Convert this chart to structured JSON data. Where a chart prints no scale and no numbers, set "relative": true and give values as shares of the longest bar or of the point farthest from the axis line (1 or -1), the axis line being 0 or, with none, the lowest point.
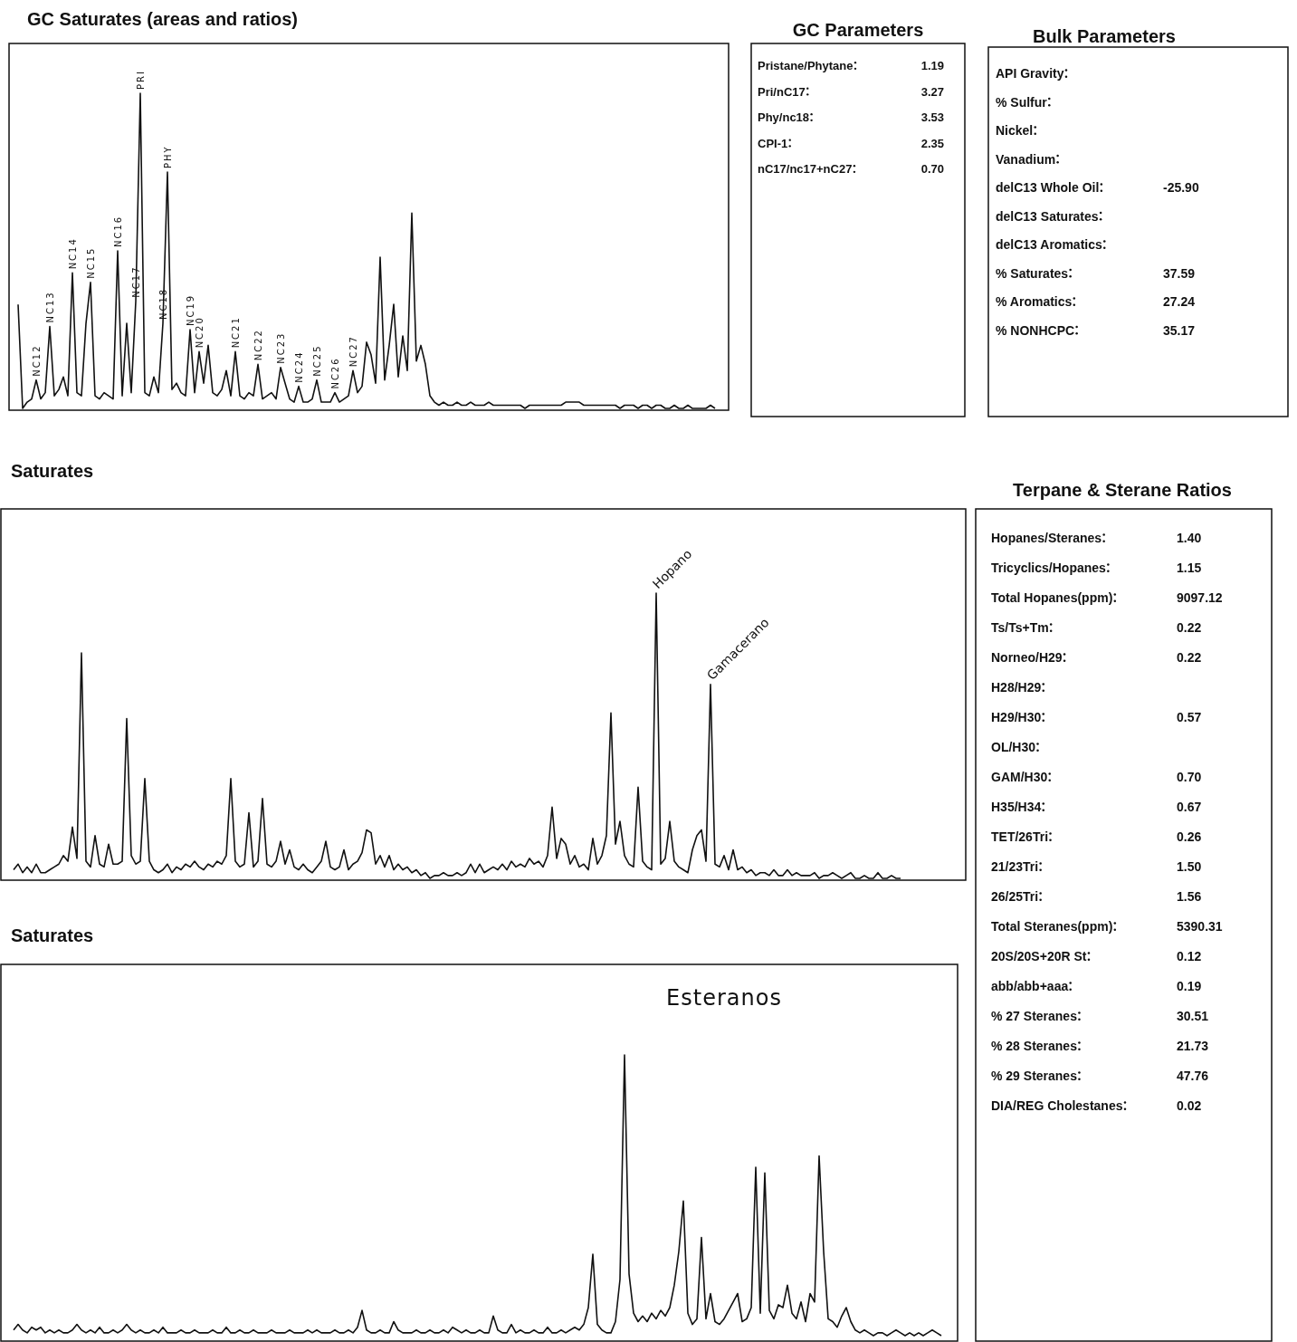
{
  "chart_data": [
    {
      "type": "line",
      "title": "GC Saturates (areas and ratios)",
      "relative": true,
      "color": "#111111",
      "categories": [
        null,
        null,
        null,
        null,
        null,
        null,
        null,
        null,
        null,
        null,
        null,
        null,
        null,
        null,
        null,
        null,
        null,
        null,
        null,
        null,
        null,
        null,
        null,
        null,
        null,
        null,
        null,
        null,
        null,
        null,
        null,
        null,
        null,
        null,
        null,
        null,
        null,
        null,
        null,
        null,
        null,
        null,
        null,
        null,
        null,
        null,
        null,
        null,
        null,
        null,
        null,
        null,
        null,
        null,
        null,
        null,
        null,
        null,
        null,
        null,
        null,
        null,
        null,
        null,
        null,
        null,
        null,
        null,
        null,
        null,
        null,
        null,
        null,
        null,
        null,
        null,
        null,
        null,
        null,
        null,
        null,
        null,
        null,
        null,
        null,
        null,
        null,
        null,
        null,
        null,
        null,
        null,
        null,
        null,
        null,
        null,
        null,
        null,
        null,
        null,
        null,
        null,
        null,
        null,
        null,
        null,
        null,
        null,
        null,
        null,
        null,
        null,
        null,
        null,
        null,
        null,
        null,
        null,
        null,
        null,
        null,
        null,
        null,
        null,
        null,
        null,
        null,
        null,
        null,
        null,
        null,
        null,
        null,
        null,
        null,
        null,
        null,
        null,
        null,
        null,
        null,
        null,
        null,
        null,
        null,
        null,
        null,
        null,
        null,
        null,
        null,
        null,
        null,
        null,
        null
      ],
      "values": [
        0.33,
        0.0,
        0.02,
        0.03,
        0.09,
        0.03,
        0.05,
        0.26,
        0.04,
        0.06,
        0.1,
        0.04,
        0.43,
        0.05,
        0.04,
        0.27,
        0.4,
        0.04,
        0.03,
        0.05,
        0.04,
        0.03,
        0.5,
        0.04,
        0.27,
        0.05,
        0.34,
        1.0,
        0.05,
        0.04,
        0.1,
        0.05,
        0.27,
        0.75,
        0.06,
        0.08,
        0.05,
        0.04,
        0.25,
        0.05,
        0.18,
        0.08,
        0.2,
        0.05,
        0.04,
        0.06,
        0.12,
        0.04,
        0.18,
        0.04,
        0.03,
        0.05,
        0.04,
        0.14,
        0.03,
        0.04,
        0.05,
        0.03,
        0.13,
        0.08,
        0.03,
        0.02,
        0.07,
        0.02,
        0.02,
        0.03,
        0.09,
        0.02,
        0.02,
        0.02,
        0.05,
        0.02,
        0.03,
        0.04,
        0.12,
        0.05,
        0.07,
        0.21,
        0.17,
        0.08,
        0.48,
        0.09,
        0.2,
        0.33,
        0.1,
        0.23,
        0.12,
        0.62,
        0.15,
        0.2,
        0.14,
        0.04,
        0.02,
        0.01,
        0.02,
        0.01,
        0.01,
        0.02,
        0.01,
        0.01,
        0.02,
        0.01,
        0.01,
        0.01,
        0.02,
        0.01,
        0.01,
        0.01,
        0.01,
        0.01,
        0.01,
        0.01,
        0.0,
        0.01,
        0.01,
        0.01,
        0.01,
        0.01,
        0.01,
        0.01,
        0.01,
        0.02,
        0.02,
        0.02,
        0.02,
        0.01,
        0.01,
        0.01,
        0.01,
        0.01,
        0.01,
        0.01,
        0.01,
        0.0,
        0.01,
        0.01,
        0.01,
        0.0,
        0.01,
        0.01,
        0.0,
        0.01,
        0.01,
        0.0,
        0.0,
        0.01,
        0.0,
        0.0,
        0.01,
        0.0,
        0.0,
        0.0,
        0.0,
        0.01,
        0.0
      ],
      "annotations": [
        "NC12",
        "NC13",
        "NC14",
        "NC15",
        "NC16",
        "NC17",
        "PRI",
        "NC18",
        "PHY",
        "NC19",
        "NC20",
        "NC21",
        "NC22",
        "NC23",
        "NC24",
        "NC25",
        "NC26",
        "NC27"
      ]
    },
    {
      "type": "other",
      "title": "GC Parameters",
      "categories": [
        "Pristane/Phytane",
        "Pri/nC17",
        "Phy/nc18",
        "CPI-1",
        "nC17/nc17+nC27"
      ],
      "value_labels": [
        "1.19",
        "3.27",
        "3.53",
        "2.35",
        "0.70"
      ]
    },
    {
      "type": "other",
      "title": "Bulk Parameters",
      "categories": [
        "API Gravity",
        "% Sulfur",
        "Nickel",
        "Vanadium",
        "delC13 Whole Oil",
        "delC13 Saturates",
        "delC13 Aromatics",
        "% Saturates",
        "% Aromatics",
        "% NONHCPC"
      ],
      "value_labels": [
        null,
        null,
        null,
        null,
        "-25.90",
        null,
        null,
        "37.59",
        "27.24",
        "35.17"
      ]
    },
    {
      "type": "line",
      "title": "Saturates",
      "relative": true,
      "color": "#111111",
      "categories": [
        null,
        null,
        null,
        null,
        null,
        null,
        null,
        null,
        null,
        null,
        null,
        null,
        null,
        null,
        null,
        null,
        null,
        null,
        null,
        null,
        null,
        null,
        null,
        null,
        null,
        null,
        null,
        null,
        null,
        null,
        null,
        null,
        null,
        null,
        null,
        null,
        null,
        null,
        null,
        null,
        null,
        null,
        null,
        null,
        null,
        null,
        null,
        null,
        null,
        null,
        null,
        null,
        null,
        null,
        null,
        null,
        null,
        null,
        null,
        null,
        null,
        null,
        null,
        null,
        null,
        null,
        null,
        null,
        null,
        null,
        null,
        null,
        null,
        null,
        null,
        null,
        null,
        null,
        null,
        null,
        null,
        null,
        null,
        null,
        null,
        null,
        null,
        null,
        null,
        null,
        null,
        null,
        null,
        null,
        null,
        null,
        null,
        null,
        null,
        null,
        null,
        null,
        null,
        null,
        null,
        null,
        null,
        null,
        null,
        null,
        null,
        null,
        null,
        null,
        null,
        null,
        null,
        null,
        null,
        null,
        null,
        null,
        null,
        null,
        null,
        null,
        null,
        null,
        null,
        null,
        null,
        null,
        null,
        null,
        null,
        null,
        null,
        null,
        null,
        null,
        null,
        null,
        null,
        null,
        null,
        null,
        null,
        null,
        null,
        null,
        null,
        null,
        null,
        null,
        null,
        null,
        null,
        null,
        null,
        null,
        null,
        null,
        null,
        null,
        null,
        null,
        null,
        null,
        null,
        null,
        null,
        null,
        null,
        null,
        null,
        null,
        null,
        null,
        null,
        null,
        null,
        null,
        null,
        null,
        null,
        null,
        null,
        null,
        null,
        null,
        null,
        null,
        null,
        null,
        null,
        null,
        null
      ],
      "values": [
        0.03,
        0.05,
        0.02,
        0.04,
        0.02,
        0.05,
        0.02,
        0.02,
        0.03,
        0.04,
        0.05,
        0.08,
        0.06,
        0.18,
        0.07,
        0.79,
        0.06,
        0.04,
        0.15,
        0.05,
        0.04,
        0.12,
        0.05,
        0.05,
        0.06,
        0.56,
        0.08,
        0.05,
        0.06,
        0.35,
        0.06,
        0.03,
        0.02,
        0.03,
        0.05,
        0.02,
        0.04,
        0.03,
        0.05,
        0.04,
        0.06,
        0.04,
        0.03,
        0.05,
        0.04,
        0.06,
        0.05,
        0.08,
        0.35,
        0.06,
        0.04,
        0.05,
        0.23,
        0.04,
        0.06,
        0.28,
        0.05,
        0.04,
        0.06,
        0.13,
        0.05,
        0.1,
        0.04,
        0.03,
        0.05,
        0.03,
        0.02,
        0.04,
        0.06,
        0.13,
        0.04,
        0.03,
        0.04,
        0.1,
        0.03,
        0.05,
        0.06,
        0.09,
        0.17,
        0.16,
        0.05,
        0.08,
        0.04,
        0.08,
        0.03,
        0.05,
        0.03,
        0.04,
        0.02,
        0.03,
        0.01,
        0.02,
        0.0,
        0.01,
        0.01,
        0.02,
        0.01,
        0.01,
        0.02,
        0.01,
        0.02,
        0.05,
        0.02,
        0.05,
        0.02,
        0.03,
        0.04,
        0.03,
        0.05,
        0.03,
        0.06,
        0.04,
        0.05,
        0.04,
        0.07,
        0.05,
        0.06,
        0.04,
        0.08,
        0.25,
        0.07,
        0.14,
        0.12,
        0.05,
        0.08,
        0.04,
        0.05,
        0.03,
        0.14,
        0.05,
        0.08,
        0.15,
        0.58,
        0.12,
        0.2,
        0.08,
        0.05,
        0.04,
        0.32,
        0.06,
        0.04,
        0.03,
        1.0,
        0.05,
        0.07,
        0.2,
        0.06,
        0.04,
        0.03,
        0.02,
        0.1,
        0.15,
        0.17,
        0.06,
        0.68,
        0.05,
        0.04,
        0.08,
        0.03,
        0.1,
        0.03,
        0.04,
        0.02,
        0.03,
        0.01,
        0.02,
        0.02,
        0.01,
        0.03,
        0.01,
        0.01,
        0.03,
        0.01,
        0.02,
        0.01,
        0.01,
        0.01,
        0.02,
        0.0,
        0.01,
        0.01,
        0.02,
        0.01,
        0.0,
        0.01,
        0.02,
        0.0,
        0.0,
        0.01,
        0.0,
        0.0,
        0.02,
        0.0,
        0.0,
        0.01,
        0.0,
        0.0
      ],
      "annotations": [
        "Hopano",
        "Gamacerano"
      ]
    },
    {
      "type": "other",
      "title": "Terpane & Sterane Ratios",
      "categories": [
        "Hopanes/Steranes",
        "Tricyclics/Hopanes",
        "Total Hopanes(ppm)",
        "Ts/Ts+Tm",
        "Norneo/H29",
        "H28/H29",
        "H29/H30",
        "OL/H30",
        "GAM/H30",
        "H35/H34",
        "TET/26Tri",
        "21/23Tri",
        "26/25Tri",
        "Total Steranes(ppm)",
        "20S/20S+20R St",
        "abb/abb+aaa",
        "% 27 Steranes",
        "% 28 Steranes",
        "% 29 Steranes",
        "DIA/REG Cholestanes"
      ],
      "value_labels": [
        "1.40",
        "1.15",
        "9097.12",
        "0.22",
        "0.22",
        null,
        "0.57",
        null,
        "0.70",
        "0.67",
        "0.26",
        "1.50",
        "1.56",
        "5390.31",
        "0.12",
        "0.19",
        "30.51",
        "21.73",
        "47.76",
        "0.02"
      ]
    },
    {
      "type": "line",
      "title": "Saturates",
      "relative": true,
      "color": "#111111",
      "categories": [
        null,
        null,
        null,
        null,
        null,
        null,
        null,
        null,
        null,
        null,
        null,
        null,
        null,
        null,
        null,
        null,
        null,
        null,
        null,
        null,
        null,
        null,
        null,
        null,
        null,
        null,
        null,
        null,
        null,
        null,
        null,
        null,
        null,
        null,
        null,
        null,
        null,
        null,
        null,
        null,
        null,
        null,
        null,
        null,
        null,
        null,
        null,
        null,
        null,
        null,
        null,
        null,
        null,
        null,
        null,
        null,
        null,
        null,
        null,
        null,
        null,
        null,
        null,
        null,
        null,
        null,
        null,
        null,
        null,
        null,
        null,
        null,
        null,
        null,
        null,
        null,
        null,
        null,
        null,
        null,
        null,
        null,
        null,
        null,
        null,
        null,
        null,
        null,
        null,
        null,
        null,
        null,
        null,
        null,
        null,
        null,
        null,
        null,
        null,
        null,
        null,
        null,
        null,
        null,
        null,
        null,
        null,
        null,
        null,
        null,
        null,
        null,
        null,
        null,
        null,
        null,
        null,
        null,
        null,
        null,
        null,
        null,
        null,
        null,
        null,
        null,
        null,
        null,
        null,
        null,
        null,
        null,
        null,
        null,
        null,
        null,
        null,
        null,
        null,
        null,
        null,
        null,
        null,
        null,
        null,
        null,
        null,
        null,
        null,
        null,
        null,
        null,
        null,
        null,
        null,
        null,
        null,
        null,
        null,
        null,
        null,
        null,
        null,
        null,
        null,
        null,
        null,
        null,
        null,
        null,
        null,
        null,
        null,
        null,
        null,
        null,
        null,
        null,
        null,
        null,
        null,
        null,
        null,
        null,
        null,
        null,
        null,
        null,
        null,
        null,
        null,
        null,
        null,
        null,
        null,
        null,
        null,
        null,
        null,
        null,
        null,
        null,
        null,
        null,
        null,
        null
      ],
      "values": [
        0.02,
        0.04,
        0.02,
        0.01,
        0.03,
        0.02,
        0.03,
        0.01,
        0.02,
        0.01,
        0.02,
        0.01,
        0.01,
        0.02,
        0.04,
        0.02,
        0.01,
        0.02,
        0.01,
        0.03,
        0.01,
        0.01,
        0.02,
        0.01,
        0.02,
        0.04,
        0.02,
        0.01,
        0.02,
        0.01,
        0.01,
        0.02,
        0.01,
        0.03,
        0.01,
        0.01,
        0.01,
        0.02,
        0.01,
        0.01,
        0.02,
        0.01,
        0.01,
        0.01,
        0.02,
        0.01,
        0.01,
        0.03,
        0.01,
        0.01,
        0.02,
        0.01,
        0.01,
        0.02,
        0.01,
        0.01,
        0.01,
        0.02,
        0.01,
        0.01,
        0.01,
        0.02,
        0.01,
        0.01,
        0.01,
        0.02,
        0.01,
        0.02,
        0.01,
        0.01,
        0.01,
        0.02,
        0.01,
        0.01,
        0.02,
        0.01,
        0.03,
        0.09,
        0.02,
        0.01,
        0.01,
        0.02,
        0.01,
        0.01,
        0.05,
        0.02,
        0.01,
        0.01,
        0.01,
        0.02,
        0.01,
        0.01,
        0.02,
        0.01,
        0.01,
        0.02,
        0.01,
        0.03,
        0.02,
        0.01,
        0.02,
        0.01,
        0.01,
        0.02,
        0.01,
        0.01,
        0.07,
        0.02,
        0.01,
        0.01,
        0.04,
        0.01,
        0.02,
        0.01,
        0.01,
        0.02,
        0.01,
        0.01,
        0.03,
        0.01,
        0.01,
        0.02,
        0.01,
        0.02,
        0.03,
        0.02,
        0.04,
        0.1,
        0.29,
        0.04,
        0.02,
        0.01,
        0.01,
        0.05,
        0.2,
        1.0,
        0.22,
        0.08,
        0.05,
        0.07,
        0.05,
        0.08,
        0.06,
        0.09,
        0.07,
        0.1,
        0.18,
        0.3,
        0.48,
        0.08,
        0.04,
        0.06,
        0.35,
        0.06,
        0.15,
        0.05,
        0.04,
        0.06,
        0.09,
        0.12,
        0.15,
        0.05,
        0.06,
        0.1,
        0.6,
        0.08,
        0.58,
        0.09,
        0.06,
        0.11,
        0.1,
        0.18,
        0.08,
        0.06,
        0.12,
        0.05,
        0.15,
        0.12,
        0.64,
        0.3,
        0.06,
        0.05,
        0.03,
        0.07,
        0.1,
        0.05,
        0.02,
        0.01,
        0.02,
        0.01,
        0.0,
        0.01,
        0.01,
        0.0,
        0.01,
        0.02,
        0.01,
        0.0,
        0.01,
        0.0,
        0.01,
        0.0,
        0.01,
        0.02,
        0.01,
        0.0
      ],
      "annotations": [
        "Esteranos"
      ]
    }
  ]
}
